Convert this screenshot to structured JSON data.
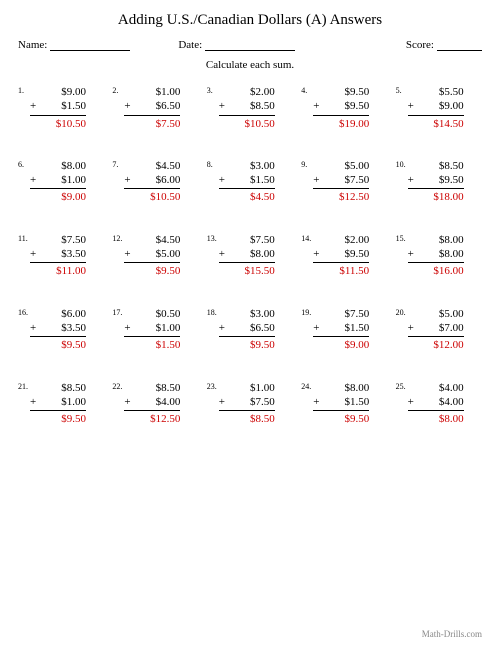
{
  "title": "Adding U.S./Canadian Dollars (A) Answers",
  "labels": {
    "name": "Name:",
    "date": "Date:",
    "score": "Score:"
  },
  "instruction": "Calculate each sum.",
  "footer": "Math-Drills.com",
  "colors": {
    "answer": "#cc0000",
    "text": "#000000",
    "bg": "#ffffff",
    "footer": "#888888"
  },
  "problems": [
    {
      "n": "1.",
      "a": "$9.00",
      "b": "$1.50",
      "ans": "$10.50"
    },
    {
      "n": "2.",
      "a": "$1.00",
      "b": "$6.50",
      "ans": "$7.50"
    },
    {
      "n": "3.",
      "a": "$2.00",
      "b": "$8.50",
      "ans": "$10.50"
    },
    {
      "n": "4.",
      "a": "$9.50",
      "b": "$9.50",
      "ans": "$19.00"
    },
    {
      "n": "5.",
      "a": "$5.50",
      "b": "$9.00",
      "ans": "$14.50"
    },
    {
      "n": "6.",
      "a": "$8.00",
      "b": "$1.00",
      "ans": "$9.00"
    },
    {
      "n": "7.",
      "a": "$4.50",
      "b": "$6.00",
      "ans": "$10.50"
    },
    {
      "n": "8.",
      "a": "$3.00",
      "b": "$1.50",
      "ans": "$4.50"
    },
    {
      "n": "9.",
      "a": "$5.00",
      "b": "$7.50",
      "ans": "$12.50"
    },
    {
      "n": "10.",
      "a": "$8.50",
      "b": "$9.50",
      "ans": "$18.00"
    },
    {
      "n": "11.",
      "a": "$7.50",
      "b": "$3.50",
      "ans": "$11.00"
    },
    {
      "n": "12.",
      "a": "$4.50",
      "b": "$5.00",
      "ans": "$9.50"
    },
    {
      "n": "13.",
      "a": "$7.50",
      "b": "$8.00",
      "ans": "$15.50"
    },
    {
      "n": "14.",
      "a": "$2.00",
      "b": "$9.50",
      "ans": "$11.50"
    },
    {
      "n": "15.",
      "a": "$8.00",
      "b": "$8.00",
      "ans": "$16.00"
    },
    {
      "n": "16.",
      "a": "$6.00",
      "b": "$3.50",
      "ans": "$9.50"
    },
    {
      "n": "17.",
      "a": "$0.50",
      "b": "$1.00",
      "ans": "$1.50"
    },
    {
      "n": "18.",
      "a": "$3.00",
      "b": "$6.50",
      "ans": "$9.50"
    },
    {
      "n": "19.",
      "a": "$7.50",
      "b": "$1.50",
      "ans": "$9.00"
    },
    {
      "n": "20.",
      "a": "$5.00",
      "b": "$7.00",
      "ans": "$12.00"
    },
    {
      "n": "21.",
      "a": "$8.50",
      "b": "$1.00",
      "ans": "$9.50"
    },
    {
      "n": "22.",
      "a": "$8.50",
      "b": "$4.00",
      "ans": "$12.50"
    },
    {
      "n": "23.",
      "a": "$1.00",
      "b": "$7.50",
      "ans": "$8.50"
    },
    {
      "n": "24.",
      "a": "$8.00",
      "b": "$1.50",
      "ans": "$9.50"
    },
    {
      "n": "25.",
      "a": "$4.00",
      "b": "$4.00",
      "ans": "$8.00"
    }
  ]
}
